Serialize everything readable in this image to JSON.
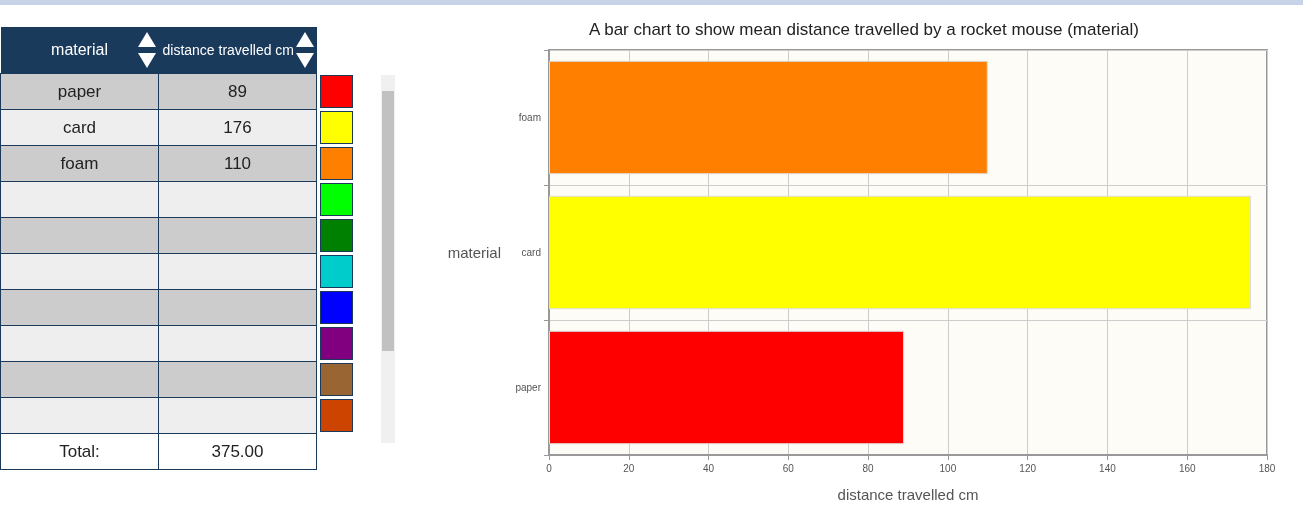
{
  "chart_data": [
    {
      "type": "other",
      "ylabel": "material",
      "xlabel": "distance travelled cm",
      "categories": [
        "paper",
        "card",
        "foam"
      ],
      "values": [
        89,
        176,
        110
      ],
      "data_labels": true,
      "annotations": [
        "Total:",
        "375.00"
      ]
    },
    {
      "type": "bar",
      "orientation": "horizontal",
      "title": "A bar chart to show mean distance travelled by a rocket mouse (material)",
      "xlabel": "distance travelled cm",
      "ylabel": "material",
      "categories": [
        "foam",
        "card",
        "paper"
      ],
      "values": [
        110,
        176,
        89
      ],
      "colors": [
        "#ff8000",
        "#ffff00",
        "#ff0000"
      ],
      "xlim": [
        0,
        180
      ],
      "xticks": [
        0,
        20,
        40,
        60,
        80,
        100,
        120,
        140,
        160,
        180
      ],
      "grid": true
    }
  ]
}
